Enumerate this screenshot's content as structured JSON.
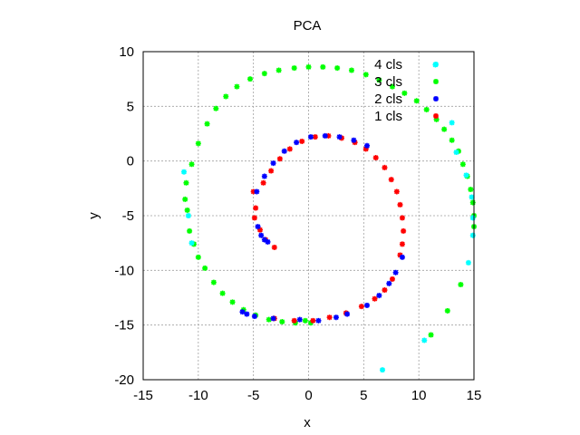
{
  "chart_data": {
    "type": "scatter",
    "title": "PCA",
    "xlabel": "x",
    "ylabel": "y",
    "xlim": [
      -15,
      15
    ],
    "ylim": [
      -20,
      10
    ],
    "xticks": [
      "-15",
      "-10",
      "-5",
      "0",
      "5",
      "10",
      "15"
    ],
    "yticks": [
      "10",
      "5",
      "0",
      "-5",
      "-10",
      "-15",
      "-20"
    ],
    "grid": true,
    "legend_position": "top-right",
    "series": [
      {
        "name": "4 cls",
        "color": "#00ffff",
        "marker": "star",
        "points": [
          [
            -11.3,
            -1.0
          ],
          [
            -10.9,
            -5.0
          ],
          [
            -10.6,
            -7.5
          ],
          [
            11.5,
            8.8
          ],
          [
            13.0,
            3.5
          ],
          [
            13.4,
            0.8
          ],
          [
            14.3,
            -1.3
          ],
          [
            14.8,
            -3.3
          ],
          [
            14.9,
            -5.2
          ],
          [
            14.9,
            -6.8
          ],
          [
            14.5,
            -9.3
          ],
          [
            10.5,
            -16.4
          ],
          [
            6.7,
            -19.1
          ]
        ]
      },
      {
        "name": "3 cls",
        "color": "#00ff00",
        "marker": "star",
        "points": [
          [
            -10.6,
            -0.3
          ],
          [
            -10.0,
            1.6
          ],
          [
            -9.2,
            3.4
          ],
          [
            -8.4,
            4.8
          ],
          [
            -7.5,
            5.9
          ],
          [
            -6.5,
            6.8
          ],
          [
            -5.3,
            7.5
          ],
          [
            -4.0,
            8.0
          ],
          [
            -2.7,
            8.3
          ],
          [
            -1.3,
            8.5
          ],
          [
            0.0,
            8.6
          ],
          [
            1.3,
            8.6
          ],
          [
            2.6,
            8.5
          ],
          [
            3.9,
            8.3
          ],
          [
            5.2,
            7.9
          ],
          [
            6.4,
            7.4
          ],
          [
            7.6,
            6.8
          ],
          [
            8.7,
            6.2
          ],
          [
            9.8,
            5.5
          ],
          [
            10.7,
            4.7
          ],
          [
            11.6,
            3.8
          ],
          [
            12.3,
            2.9
          ],
          [
            13.0,
            1.9
          ],
          [
            13.6,
            0.9
          ],
          [
            14.0,
            -0.3
          ],
          [
            14.4,
            -1.4
          ],
          [
            14.7,
            -2.6
          ],
          [
            14.9,
            -3.8
          ],
          [
            15.0,
            -5.0
          ],
          [
            15.0,
            -6.0
          ],
          [
            13.8,
            -11.3
          ],
          [
            12.6,
            -13.7
          ],
          [
            11.1,
            -15.9
          ],
          [
            -11.1,
            -2.0
          ],
          [
            -11.2,
            -3.5
          ],
          [
            -11.0,
            -4.5
          ],
          [
            -10.8,
            -6.4
          ],
          [
            -10.4,
            -7.6
          ],
          [
            -10.0,
            -8.8
          ],
          [
            -9.4,
            -9.8
          ],
          [
            -8.6,
            -11.1
          ],
          [
            -7.8,
            -12.1
          ],
          [
            -6.9,
            -12.9
          ],
          [
            -5.9,
            -13.6
          ],
          [
            -4.8,
            -14.1
          ],
          [
            -3.6,
            -14.5
          ],
          [
            -2.4,
            -14.7
          ],
          [
            -1.2,
            -14.8
          ],
          [
            0.2,
            -14.8
          ],
          [
            -0.3,
            -14.6
          ]
        ]
      },
      {
        "name": "2 cls",
        "color": "#0000ff",
        "marker": "star",
        "points": [
          [
            -4.7,
            -2.8
          ],
          [
            -4.0,
            -1.4
          ],
          [
            -3.2,
            -0.2
          ],
          [
            -2.2,
            0.9
          ],
          [
            -1.1,
            1.7
          ],
          [
            0.2,
            2.2
          ],
          [
            1.5,
            2.3
          ],
          [
            2.8,
            2.2
          ],
          [
            4.1,
            1.9
          ],
          [
            5.3,
            1.4
          ],
          [
            -4.6,
            -6.0
          ],
          [
            -4.3,
            -6.8
          ],
          [
            -4.0,
            -7.2
          ],
          [
            -3.7,
            -7.4
          ],
          [
            8.5,
            -8.8
          ],
          [
            7.9,
            -10.2
          ],
          [
            7.3,
            -11.2
          ],
          [
            6.4,
            -12.3
          ],
          [
            5.3,
            -13.2
          ],
          [
            3.5,
            -14.0
          ],
          [
            2.5,
            -14.3
          ],
          [
            0.9,
            -14.6
          ],
          [
            -0.8,
            -14.5
          ],
          [
            -6.0,
            -13.8
          ],
          [
            -5.6,
            -14.0
          ],
          [
            -4.9,
            -14.2
          ],
          [
            -3.2,
            -14.4
          ]
        ]
      },
      {
        "name": "1 cls",
        "color": "#ff0000",
        "marker": "star",
        "points": [
          [
            -5.0,
            -2.8
          ],
          [
            -4.8,
            -4.3
          ],
          [
            -4.9,
            -5.2
          ],
          [
            -4.4,
            -6.3
          ],
          [
            -3.9,
            -7.2
          ],
          [
            -3.1,
            -7.9
          ],
          [
            -4.1,
            -2.0
          ],
          [
            -3.4,
            -0.9
          ],
          [
            -2.6,
            0.2
          ],
          [
            -1.7,
            1.1
          ],
          [
            -0.6,
            1.8
          ],
          [
            0.6,
            2.2
          ],
          [
            1.8,
            2.3
          ],
          [
            3.0,
            2.1
          ],
          [
            4.2,
            1.7
          ],
          [
            5.2,
            1.1
          ],
          [
            6.1,
            0.3
          ],
          [
            6.9,
            -0.6
          ],
          [
            7.5,
            -1.7
          ],
          [
            8.0,
            -2.8
          ],
          [
            8.3,
            -4.0
          ],
          [
            8.5,
            -5.2
          ],
          [
            8.6,
            -6.4
          ],
          [
            8.5,
            -7.6
          ],
          [
            8.3,
            -8.6
          ],
          [
            7.6,
            -10.8
          ],
          [
            6.9,
            -11.8
          ],
          [
            6.0,
            -12.6
          ],
          [
            4.8,
            -13.3
          ],
          [
            3.4,
            -13.9
          ],
          [
            1.9,
            -14.3
          ],
          [
            0.4,
            -14.6
          ],
          [
            -1.3,
            -14.6
          ],
          [
            -3.1,
            -14.4
          ]
        ]
      }
    ]
  }
}
